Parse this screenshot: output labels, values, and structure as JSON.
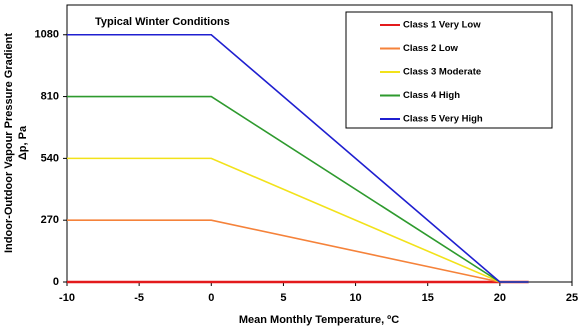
{
  "chart_data": {
    "type": "line",
    "title": "Typical Winter Conditions",
    "x_label": "Mean Monthly Temperature, ºC",
    "y_label": [
      "Indoor-Outdoor Vapour Pressure Gradient",
      "Δp, Pa"
    ],
    "x": [
      -10,
      0,
      20,
      22
    ],
    "series": [
      {
        "name": "Class 1 Very Low",
        "color": "#e31a1c",
        "values": [
          0,
          0,
          0,
          0
        ]
      },
      {
        "name": "Class 2 Low",
        "color": "#f5823a",
        "values": [
          270,
          270,
          0,
          0
        ]
      },
      {
        "name": "Class 3 Moderate",
        "color": "#f2e21a",
        "values": [
          540,
          540,
          0,
          0
        ]
      },
      {
        "name": "Class 4 High",
        "color": "#2e9a2e",
        "values": [
          810,
          810,
          0,
          0
        ]
      },
      {
        "name": "Class 5 Very High",
        "color": "#1f1fd0",
        "values": [
          1080,
          1080,
          0,
          0
        ]
      }
    ],
    "xlim": [
      -10,
      25
    ],
    "xticks": [
      -10,
      -5,
      0,
      5,
      10,
      15,
      20,
      25
    ],
    "ylim": [
      0,
      1210
    ],
    "yticks": [
      0,
      270,
      540,
      810,
      1080
    ],
    "grid": false,
    "legend": "top-right"
  }
}
